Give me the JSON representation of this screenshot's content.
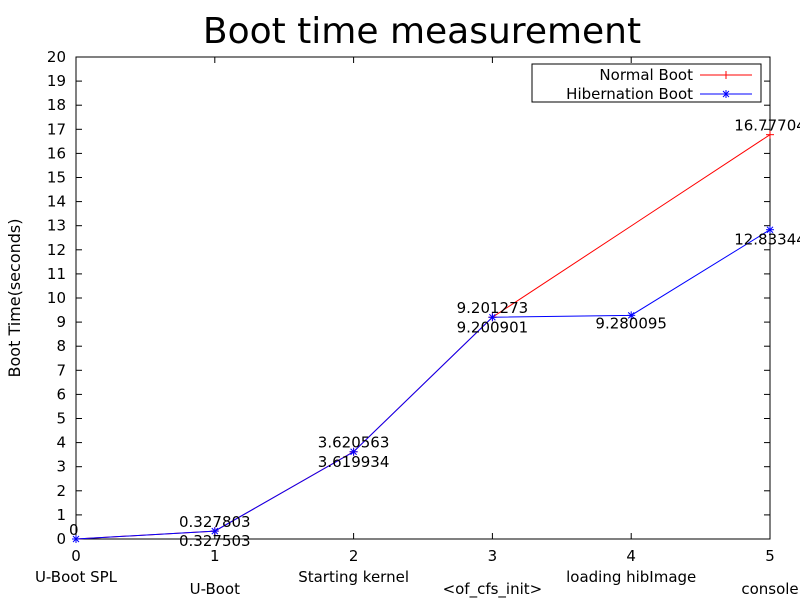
{
  "chart_data": {
    "type": "line",
    "title": "Boot time measurement",
    "xlabel": "",
    "ylabel": "Boot Time(seconds)",
    "xlim": [
      0,
      5
    ],
    "ylim": [
      0,
      20
    ],
    "x_ticks": [
      "0",
      "1",
      "2",
      "3",
      "4",
      "5"
    ],
    "y_ticks": [
      "0",
      "1",
      "2",
      "3",
      "4",
      "5",
      "6",
      "7",
      "8",
      "9",
      "10",
      "11",
      "12",
      "13",
      "14",
      "15",
      "16",
      "17",
      "18",
      "19",
      "20"
    ],
    "categories": [
      "U-Boot SPL",
      "U-Boot",
      "Starting kernel",
      "<of_cfs_init>",
      "loading hibImage",
      "console"
    ],
    "grid": false,
    "legend_position": "top-right",
    "series": [
      {
        "name": "Normal Boot",
        "color": "#ff0000",
        "marker": "plus",
        "x": [
          0,
          1,
          2,
          3,
          5
        ],
        "y": [
          0,
          0.327803,
          3.620563,
          9.201273,
          16.77704
        ],
        "labels": [
          "0",
          "0.327803",
          "3.620563",
          "9.201273",
          "16.77704"
        ]
      },
      {
        "name": "Hibernation Boot",
        "color": "#0000ff",
        "marker": "star",
        "x": [
          0,
          1,
          2,
          3,
          4,
          5
        ],
        "y": [
          0,
          0.327503,
          3.619934,
          9.200901,
          9.280095,
          12.83344
        ],
        "labels": [
          "",
          "0.327503",
          "3.619934",
          "9.200901",
          "9.280095",
          "12.83344"
        ]
      }
    ]
  }
}
